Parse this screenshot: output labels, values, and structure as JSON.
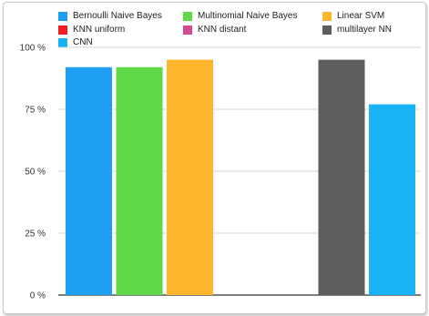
{
  "chart_data": {
    "type": "bar",
    "title": "",
    "xlabel": "",
    "ylabel": "",
    "ylim": [
      0,
      100
    ],
    "yticks": [
      0,
      25,
      50,
      75,
      100
    ],
    "ytick_labels": [
      "0 %",
      "25 %",
      "50 %",
      "75 %",
      "100 %"
    ],
    "grid": true,
    "legend_position": "top",
    "series": [
      {
        "name": "Bernoulli Naive Bayes",
        "color": "#1e9ff2",
        "value": 92
      },
      {
        "name": "Multinomial Naive Bayes",
        "color": "#5fd94a",
        "value": 92
      },
      {
        "name": "Linear SVM",
        "color": "#fdb52d",
        "value": 95
      },
      {
        "name": "KNN uniform",
        "color": "#f01e1e",
        "value": null
      },
      {
        "name": "KNN distant",
        "color": "#d64a8f",
        "value": null
      },
      {
        "name": "multilayer NN",
        "color": "#5d5d5d",
        "value": 95
      },
      {
        "name": "CNN",
        "color": "#18b3f5",
        "value": 77
      }
    ]
  }
}
